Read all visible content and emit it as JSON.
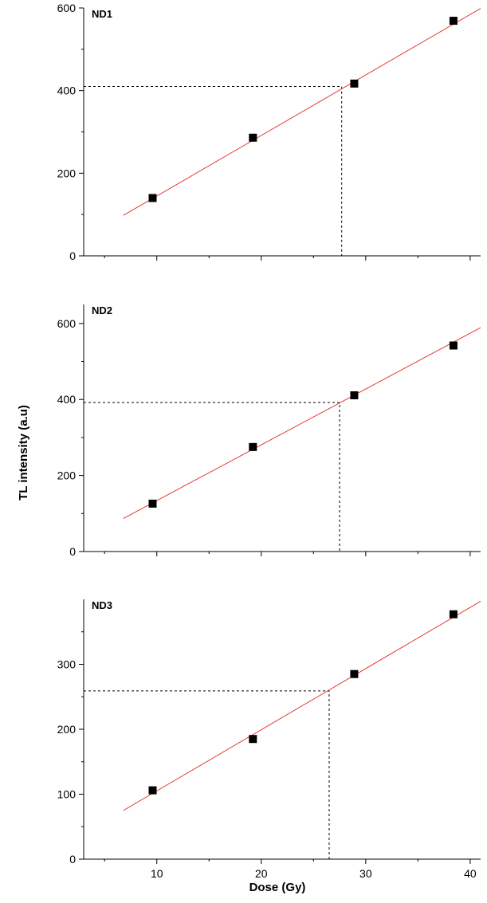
{
  "chart_data": [
    {
      "type": "scatter",
      "panel_label": "ND1",
      "x": [
        9.6,
        19.2,
        28.9,
        38.4
      ],
      "y": [
        140,
        286,
        417,
        569
      ],
      "fit": {
        "x": [
          6.8,
          41
        ],
        "y": [
          98,
          599
        ]
      },
      "guide": {
        "x": 27.7,
        "y": 410
      },
      "xlim": [
        3,
        41
      ],
      "ylim": [
        0,
        600
      ],
      "yticks": [
        0,
        200,
        400,
        600
      ],
      "yminor": [
        100,
        300,
        500
      ],
      "xticks": [
        10,
        20,
        30,
        40
      ],
      "xminor": [
        5,
        15,
        25,
        35
      ],
      "fit_color": "#e53935",
      "marker_color": "#000000"
    },
    {
      "type": "scatter",
      "panel_label": "ND2",
      "x": [
        9.6,
        19.2,
        28.9,
        38.4
      ],
      "y": [
        126,
        275,
        411,
        542
      ],
      "fit": {
        "x": [
          6.8,
          41
        ],
        "y": [
          87,
          589
        ]
      },
      "guide": {
        "x": 27.5,
        "y": 392
      },
      "xlim": [
        3,
        41
      ],
      "ylim": [
        0,
        650
      ],
      "yticks": [
        0,
        200,
        400,
        600
      ],
      "yminor": [
        100,
        300,
        500
      ],
      "xticks": [
        10,
        20,
        30,
        40
      ],
      "xminor": [
        5,
        15,
        25,
        35
      ],
      "fit_color": "#e53935",
      "marker_color": "#000000"
    },
    {
      "type": "scatter",
      "panel_label": "ND3",
      "x": [
        9.6,
        19.2,
        28.9,
        38.4
      ],
      "y": [
        106,
        185,
        285,
        377
      ],
      "fit": {
        "x": [
          6.8,
          41
        ],
        "y": [
          75,
          397
        ]
      },
      "guide": {
        "x": 26.5,
        "y": 259
      },
      "xlim": [
        3,
        41
      ],
      "ylim": [
        0,
        400
      ],
      "yticks": [
        0,
        100,
        200,
        300
      ],
      "yminor": [
        50,
        150,
        250,
        350
      ],
      "xticks": [
        10,
        20,
        30,
        40
      ],
      "xminor": [
        5,
        15,
        25,
        35
      ],
      "fit_color": "#e53935",
      "marker_color": "#000000"
    }
  ],
  "ylabel": "TL intensity (a.u)",
  "xlabel": "Dose (Gy)"
}
